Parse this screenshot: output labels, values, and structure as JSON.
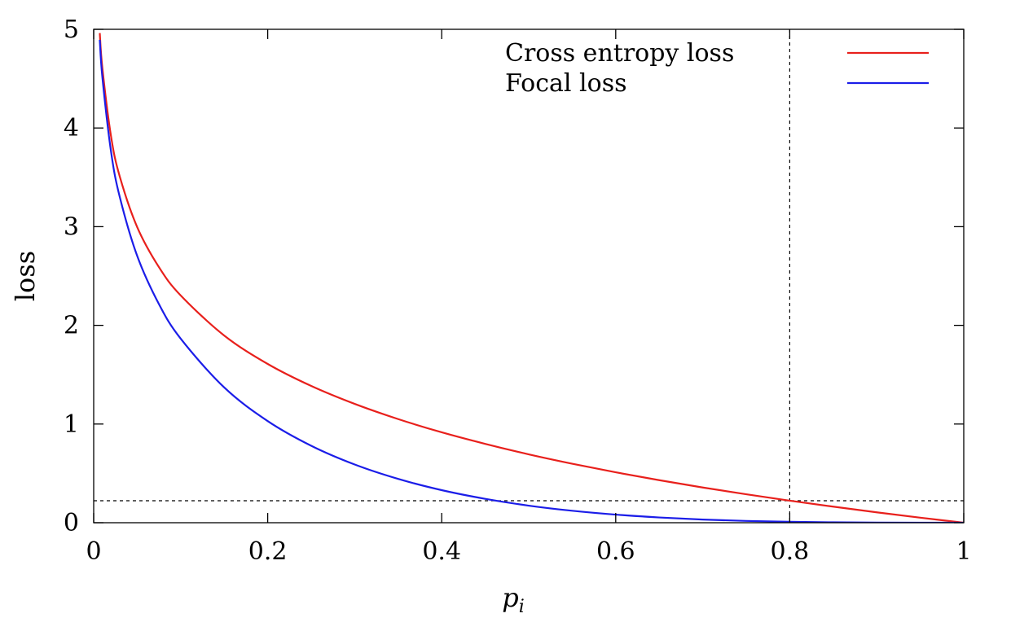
{
  "chart_data": {
    "type": "line",
    "xlabel": "p",
    "xlabel_subscript": "i",
    "ylabel": "loss",
    "xlim": [
      0,
      1
    ],
    "ylim": [
      0,
      5
    ],
    "x_ticks": [
      0,
      0.2,
      0.4,
      0.6,
      0.8,
      1
    ],
    "x_tick_labels": [
      "0",
      "0.2",
      "0.4",
      "0.6",
      "0.8",
      "1"
    ],
    "y_ticks": [
      0,
      1,
      2,
      3,
      4,
      5
    ],
    "y_tick_labels": [
      "0",
      "1",
      "2",
      "3",
      "4",
      "5"
    ],
    "grid": false,
    "legend_position": "top-right",
    "reference_lines": {
      "vertical_x": 0.8,
      "horizontal_y": 0.223
    },
    "series": [
      {
        "name": "Cross entropy loss",
        "color": "#e8201c",
        "x": [
          0.007,
          0.01,
          0.02,
          0.03,
          0.05,
          0.075,
          0.1,
          0.15,
          0.2,
          0.25,
          0.3,
          0.35,
          0.4,
          0.45,
          0.5,
          0.55,
          0.6,
          0.65,
          0.7,
          0.75,
          0.8,
          0.85,
          0.9,
          0.95,
          1.0
        ],
        "y": [
          4.962,
          4.605,
          3.912,
          3.507,
          2.996,
          2.59,
          2.303,
          1.897,
          1.609,
          1.386,
          1.204,
          1.05,
          0.916,
          0.799,
          0.693,
          0.598,
          0.511,
          0.431,
          0.357,
          0.288,
          0.223,
          0.163,
          0.105,
          0.051,
          0.0
        ]
      },
      {
        "name": "Focal loss",
        "color": "#1b1de8",
        "x": [
          0.007,
          0.01,
          0.02,
          0.03,
          0.05,
          0.075,
          0.1,
          0.15,
          0.2,
          0.25,
          0.3,
          0.35,
          0.4,
          0.45,
          0.5,
          0.55,
          0.6,
          0.65,
          0.7,
          0.75,
          0.8,
          0.85,
          0.9,
          0.95,
          1.0
        ],
        "y": [
          4.893,
          4.513,
          3.757,
          3.3,
          2.704,
          2.215,
          1.865,
          1.371,
          1.03,
          0.78,
          0.59,
          0.444,
          0.33,
          0.242,
          0.173,
          0.121,
          0.082,
          0.053,
          0.032,
          0.018,
          0.009,
          0.004,
          0.001,
          0.0,
          0.0
        ]
      }
    ]
  }
}
